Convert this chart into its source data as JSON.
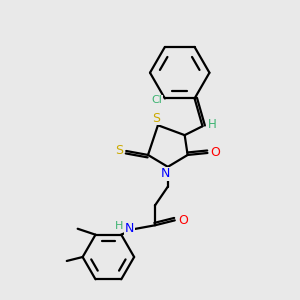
{
  "background_color": "#e9e9e9",
  "atom_colors": {
    "C": "#000000",
    "H": "#3cb371",
    "N": "#0000ff",
    "O": "#ff0000",
    "S": "#ccaa00",
    "Cl": "#3cb371"
  },
  "bond_color": "#000000",
  "figsize": [
    3.0,
    3.0
  ],
  "dpi": 100
}
